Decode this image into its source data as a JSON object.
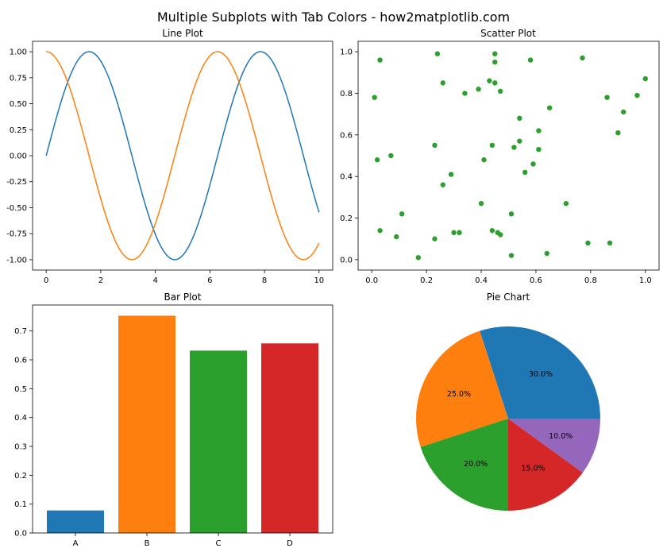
{
  "figure": {
    "title": "Multiple Subplots with Tab Colors - how2matplotlib.com"
  },
  "chart_data": [
    {
      "type": "line",
      "title": "Line Plot",
      "xlim": [
        -0.5,
        10.5
      ],
      "ylim": [
        -1.1,
        1.1
      ],
      "x_ticks": [
        0,
        2,
        4,
        6,
        8,
        10
      ],
      "x_tick_labels": [
        "0",
        "2",
        "4",
        "6",
        "8",
        "10"
      ],
      "y_ticks": [
        -1.0,
        -0.75,
        -0.5,
        -0.25,
        0.0,
        0.25,
        0.5,
        0.75,
        1.0
      ],
      "y_tick_labels": [
        "-1.00",
        "-0.75",
        "-0.50",
        "-0.25",
        "0.00",
        "0.25",
        "0.50",
        "0.75",
        "1.00"
      ],
      "series": [
        {
          "name": "sin(x)",
          "function": "sin",
          "x_range": [
            0,
            10
          ],
          "color": "#1f77b4"
        },
        {
          "name": "cos(x)",
          "function": "cos",
          "x_range": [
            0,
            10
          ],
          "color": "#ff7f0e"
        }
      ]
    },
    {
      "type": "scatter",
      "title": "Scatter Plot",
      "xlim": [
        -0.05,
        1.05
      ],
      "ylim": [
        -0.05,
        1.05
      ],
      "x_ticks": [
        0.0,
        0.2,
        0.4,
        0.6,
        0.8,
        1.0
      ],
      "x_tick_labels": [
        "0.0",
        "0.2",
        "0.4",
        "0.6",
        "0.8",
        "1.0"
      ],
      "y_ticks": [
        0.0,
        0.2,
        0.4,
        0.6,
        0.8,
        1.0
      ],
      "y_tick_labels": [
        "0.0",
        "0.2",
        "0.4",
        "0.6",
        "0.8",
        "1.0"
      ],
      "color": "#2ca02c",
      "points": [
        [
          0.01,
          0.78
        ],
        [
          0.02,
          0.48
        ],
        [
          0.03,
          0.96
        ],
        [
          0.03,
          0.14
        ],
        [
          0.07,
          0.5
        ],
        [
          0.09,
          0.11
        ],
        [
          0.11,
          0.22
        ],
        [
          0.17,
          0.01
        ],
        [
          0.23,
          0.55
        ],
        [
          0.23,
          0.1
        ],
        [
          0.24,
          0.99
        ],
        [
          0.26,
          0.85
        ],
        [
          0.26,
          0.36
        ],
        [
          0.29,
          0.41
        ],
        [
          0.3,
          0.13
        ],
        [
          0.32,
          0.13
        ],
        [
          0.34,
          0.8
        ],
        [
          0.39,
          0.82
        ],
        [
          0.4,
          0.27
        ],
        [
          0.41,
          0.48
        ],
        [
          0.43,
          0.86
        ],
        [
          0.44,
          0.55
        ],
        [
          0.44,
          0.14
        ],
        [
          0.45,
          0.95
        ],
        [
          0.45,
          0.99
        ],
        [
          0.45,
          0.85
        ],
        [
          0.46,
          0.13
        ],
        [
          0.47,
          0.81
        ],
        [
          0.47,
          0.12
        ],
        [
          0.51,
          0.02
        ],
        [
          0.51,
          0.22
        ],
        [
          0.52,
          0.54
        ],
        [
          0.54,
          0.57
        ],
        [
          0.54,
          0.68
        ],
        [
          0.56,
          0.42
        ],
        [
          0.58,
          0.96
        ],
        [
          0.59,
          0.46
        ],
        [
          0.61,
          0.53
        ],
        [
          0.61,
          0.62
        ],
        [
          0.64,
          0.03
        ],
        [
          0.65,
          0.73
        ],
        [
          0.71,
          0.27
        ],
        [
          0.77,
          0.97
        ],
        [
          0.79,
          0.08
        ],
        [
          0.86,
          0.78
        ],
        [
          0.87,
          0.08
        ],
        [
          0.9,
          0.61
        ],
        [
          0.92,
          0.71
        ],
        [
          0.97,
          0.79
        ],
        [
          1.0,
          0.87
        ]
      ]
    },
    {
      "type": "bar",
      "title": "Bar Plot",
      "categories": [
        "A",
        "B",
        "C",
        "D"
      ],
      "values": [
        0.078,
        0.753,
        0.632,
        0.657
      ],
      "colors": [
        "#1f77b4",
        "#ff7f0e",
        "#2ca02c",
        "#d62728"
      ],
      "ylim": [
        0,
        0.79
      ],
      "y_ticks": [
        0,
        0.1,
        0.2,
        0.3,
        0.4,
        0.5,
        0.6,
        0.7
      ],
      "y_tick_labels": [
        "0.0",
        "0.1",
        "0.2",
        "0.3",
        "0.4",
        "0.5",
        "0.6",
        "0.7"
      ]
    },
    {
      "type": "pie",
      "title": "Pie Chart",
      "values": [
        30,
        25,
        20,
        15,
        10
      ],
      "labels": [
        "30.0%",
        "25.0%",
        "20.0%",
        "15.0%",
        "10.0%"
      ],
      "colors": [
        "#1f77b4",
        "#ff7f0e",
        "#2ca02c",
        "#d62728",
        "#9467bd"
      ],
      "start_angle_deg": 0,
      "direction": "counterclockwise"
    }
  ]
}
